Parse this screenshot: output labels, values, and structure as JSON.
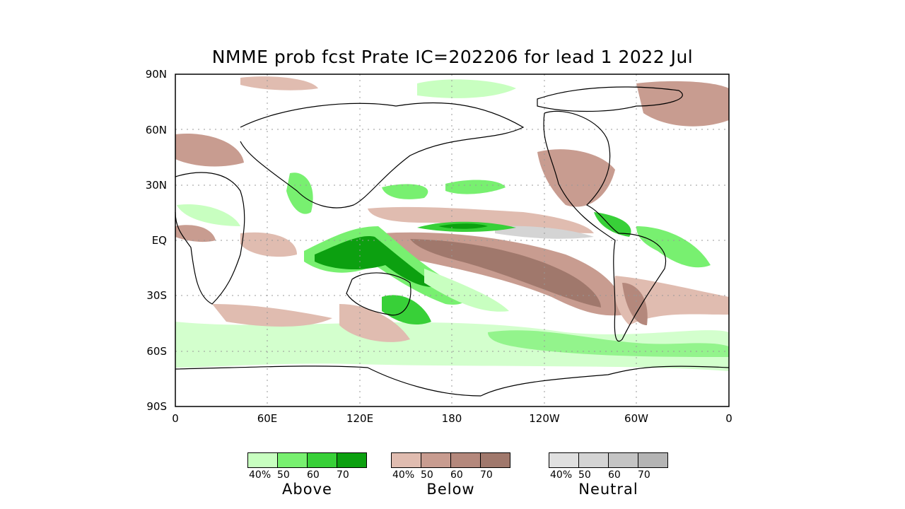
{
  "title": "NMME prob fcst Prate IC=202206 for lead 1 2022 Jul",
  "y_axis_labels": [
    "90N",
    "60N",
    "30N",
    "EQ",
    "30S",
    "60S",
    "90S"
  ],
  "x_axis_labels": [
    "0",
    "60E",
    "120E",
    "180",
    "120W",
    "60W",
    "0"
  ],
  "legends": [
    {
      "name": "Above",
      "ticks": [
        "40%",
        "50",
        "60",
        "70"
      ],
      "colors": [
        "#c8ffc0",
        "#78f070",
        "#38d038",
        "#0ca010"
      ]
    },
    {
      "name": "Below",
      "ticks": [
        "40%",
        "50",
        "60",
        "70"
      ],
      "colors": [
        "#e0bcb0",
        "#c89c90",
        "#b4887c",
        "#a0786c"
      ]
    },
    {
      "name": "Neutral",
      "ticks": [
        "40%",
        "50",
        "60",
        "70"
      ],
      "colors": [
        "#e0e0e0",
        "#d4d4d4",
        "#c4c4c4",
        "#b4b4b4"
      ]
    }
  ]
}
